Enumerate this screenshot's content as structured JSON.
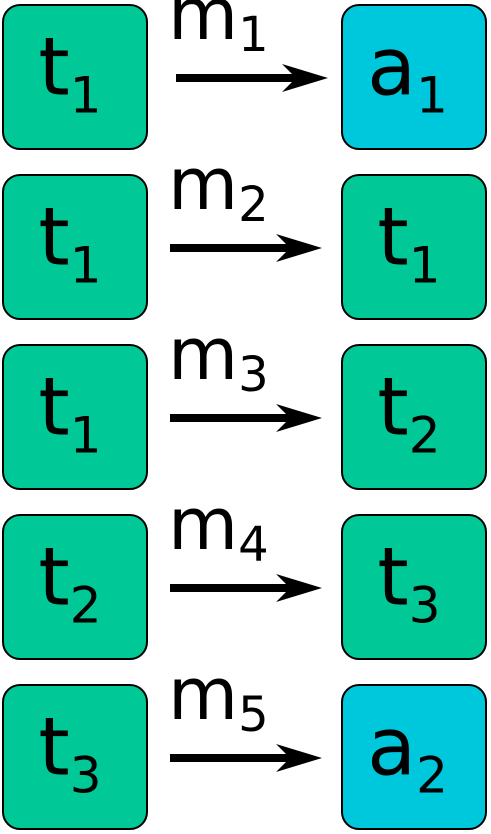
{
  "colors": {
    "state": "#00c896",
    "accept": "#00c8dc"
  },
  "transitions": [
    {
      "from": {
        "base": "t",
        "sub": "1",
        "kind": "state"
      },
      "label": {
        "base": "m",
        "sub": "1"
      },
      "to": {
        "base": "a",
        "sub": "1",
        "kind": "accept"
      }
    },
    {
      "from": {
        "base": "t",
        "sub": "1",
        "kind": "state"
      },
      "label": {
        "base": "m",
        "sub": "2"
      },
      "to": {
        "base": "t",
        "sub": "1",
        "kind": "state"
      }
    },
    {
      "from": {
        "base": "t",
        "sub": "1",
        "kind": "state"
      },
      "label": {
        "base": "m",
        "sub": "3"
      },
      "to": {
        "base": "t",
        "sub": "2",
        "kind": "state"
      }
    },
    {
      "from": {
        "base": "t",
        "sub": "2",
        "kind": "state"
      },
      "label": {
        "base": "m",
        "sub": "4"
      },
      "to": {
        "base": "t",
        "sub": "3",
        "kind": "state"
      }
    },
    {
      "from": {
        "base": "t",
        "sub": "3",
        "kind": "state"
      },
      "label": {
        "base": "m",
        "sub": "5"
      },
      "to": {
        "base": "a",
        "sub": "2",
        "kind": "accept"
      }
    }
  ]
}
